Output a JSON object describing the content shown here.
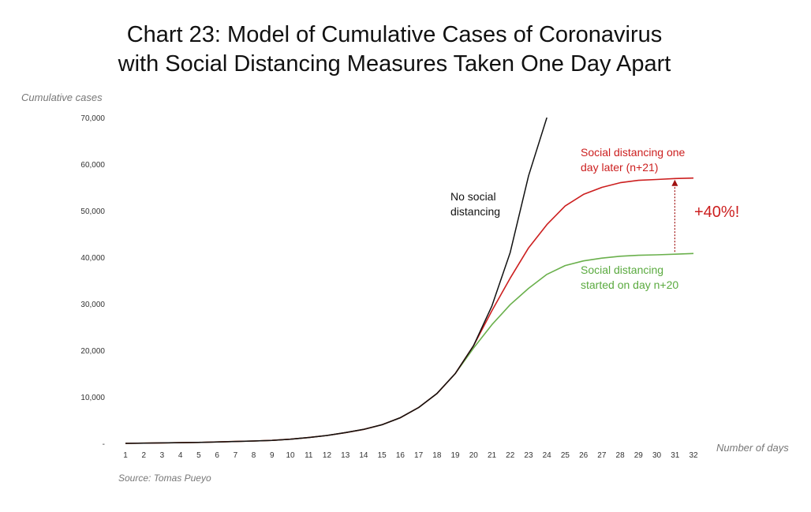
{
  "title_line1": "Chart 23: Model of Cumulative Cases of Coronavirus",
  "title_line2": "with Social Distancing Measures Taken One Day Apart",
  "source": "Source: Tomas Pueyo",
  "annotations": {
    "black_line1": "No social",
    "black_line2": "distancing",
    "red_line1": "Social distancing one",
    "red_line2": "day later (n+21)",
    "green_line1": "Social distancing",
    "green_line2": "started on day n+20",
    "difference": "+40%!"
  },
  "colors": {
    "no_distancing": "#111111",
    "day21": "#cc1f1f",
    "day20": "#6ab04c"
  },
  "chart_data": {
    "type": "line",
    "title": "Chart 23: Model of Cumulative Cases of Coronavirus with Social Distancing Measures Taken One Day Apart",
    "xlabel": "Number of days",
    "ylabel": "Cumulative cases",
    "ylim": [
      0,
      70000
    ],
    "xlim": [
      1,
      32
    ],
    "yticks": [
      "-",
      "10,000",
      "20,000",
      "30,000",
      "40,000",
      "50,000",
      "60,000",
      "70,000"
    ],
    "xticks": [
      1,
      2,
      3,
      4,
      5,
      6,
      7,
      8,
      9,
      10,
      11,
      12,
      13,
      14,
      15,
      16,
      17,
      18,
      19,
      20,
      21,
      22,
      23,
      24,
      25,
      26,
      27,
      28,
      29,
      30,
      31,
      32
    ],
    "grid": false,
    "legend": "none (direct labels)",
    "series": [
      {
        "key": "no_distancing",
        "x": [
          1,
          2,
          3,
          4,
          5,
          6,
          7,
          8,
          9,
          10,
          11,
          12,
          13,
          14,
          15,
          16,
          17,
          18,
          19,
          20,
          21,
          22,
          23,
          24
        ],
        "values": [
          0,
          50,
          100,
          150,
          200,
          300,
          400,
          500,
          650,
          900,
          1250,
          1700,
          2300,
          3000,
          4000,
          5500,
          7700,
          10700,
          15000,
          21000,
          29500,
          41000,
          57500,
          70000
        ]
      },
      {
        "key": "day21",
        "x": [
          1,
          2,
          3,
          4,
          5,
          6,
          7,
          8,
          9,
          10,
          11,
          12,
          13,
          14,
          15,
          16,
          17,
          18,
          19,
          20,
          21,
          22,
          23,
          24,
          25,
          26,
          27,
          28,
          29,
          30,
          31,
          32
        ],
        "values": [
          0,
          50,
          100,
          150,
          200,
          300,
          400,
          500,
          650,
          900,
          1250,
          1700,
          2300,
          3000,
          4000,
          5500,
          7700,
          10700,
          15000,
          21000,
          28500,
          35500,
          42000,
          47000,
          51000,
          53500,
          55000,
          56000,
          56500,
          56700,
          56900,
          57000
        ]
      },
      {
        "key": "day20",
        "x": [
          1,
          2,
          3,
          4,
          5,
          6,
          7,
          8,
          9,
          10,
          11,
          12,
          13,
          14,
          15,
          16,
          17,
          18,
          19,
          20,
          21,
          22,
          23,
          24,
          25,
          26,
          27,
          28,
          29,
          30,
          31,
          32
        ],
        "values": [
          0,
          50,
          100,
          150,
          200,
          300,
          400,
          500,
          650,
          900,
          1250,
          1700,
          2300,
          3000,
          4000,
          5500,
          7700,
          10700,
          15000,
          20500,
          25500,
          29800,
          33300,
          36300,
          38200,
          39200,
          39800,
          40200,
          40400,
          40500,
          40650,
          40800
        ]
      }
    ],
    "arrow": {
      "x": 31.5,
      "from": 40800,
      "to": 57000,
      "label": "+40%!"
    }
  }
}
